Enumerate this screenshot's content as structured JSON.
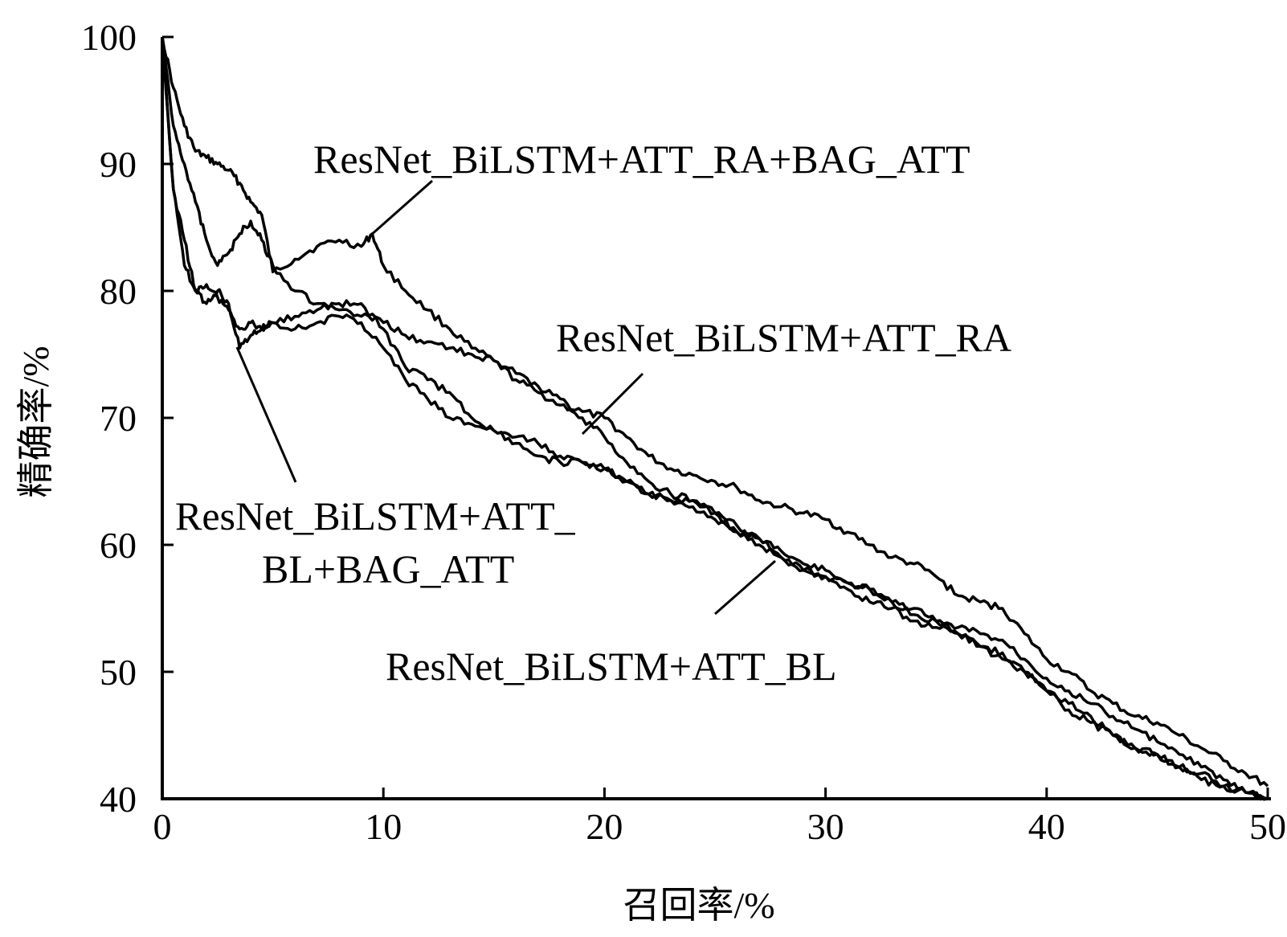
{
  "chart_data": {
    "type": "line",
    "xlabel": "召回率/%",
    "ylabel": "精确率/%",
    "xlim": [
      0,
      50
    ],
    "ylim": [
      40,
      100
    ],
    "xticks": [
      "0",
      "10",
      "20",
      "30",
      "40",
      "50"
    ],
    "yticks": [
      "40",
      "50",
      "60",
      "70",
      "80",
      "90",
      "100"
    ],
    "grid": false,
    "legend": "none",
    "line_color": "#000000",
    "series": [
      {
        "name": "ResNet_BiLSTM+ATT_RA+BAG_ATT",
        "x": [
          0,
          0.5,
          1,
          1.5,
          2,
          2.5,
          3,
          3.5,
          4,
          4.5,
          5,
          6,
          7,
          8,
          9,
          9.5,
          10,
          11,
          12,
          13,
          14,
          15,
          16,
          17,
          18,
          19,
          20,
          21,
          22,
          23,
          24,
          25,
          26,
          27,
          28,
          29,
          30,
          31,
          32,
          33,
          34,
          35,
          36,
          37,
          38,
          39,
          40,
          41,
          42,
          43,
          44,
          45,
          46,
          47,
          48,
          49,
          50
        ],
        "y": [
          100,
          96,
          93,
          91,
          90.5,
          90,
          89.5,
          88.5,
          87,
          86,
          81.5,
          82.5,
          83.5,
          84,
          83.5,
          84.5,
          82,
          80,
          78.5,
          77,
          75.5,
          74.5,
          73,
          72,
          71,
          70.5,
          70,
          68.5,
          67,
          66,
          65.5,
          65,
          64.5,
          63.5,
          63,
          62.5,
          62,
          61,
          60,
          59,
          58.5,
          57.5,
          56,
          55.5,
          55,
          53,
          51,
          50,
          48.5,
          47.5,
          46.5,
          46,
          45,
          44,
          43,
          42,
          41
        ]
      },
      {
        "name": "ResNet_BiLSTM+ATT_RA",
        "x": [
          0,
          0.5,
          1,
          1.5,
          2,
          2.5,
          3,
          3.5,
          4,
          4.5,
          5,
          6,
          7,
          8,
          9,
          10,
          11,
          12,
          13,
          14,
          15,
          16,
          17,
          18,
          19,
          20,
          21,
          22,
          23,
          24,
          25,
          26,
          27,
          28,
          29,
          30,
          31,
          32,
          33,
          34,
          35,
          36,
          37,
          38,
          39,
          40,
          41,
          42,
          43,
          44,
          45,
          46,
          47,
          48,
          49,
          50
        ],
        "y": [
          100,
          93,
          90,
          87,
          84,
          82,
          83,
          84.5,
          85.5,
          84,
          82,
          80,
          79,
          78.5,
          78,
          77.5,
          76.5,
          76,
          75.5,
          75,
          74.5,
          73.5,
          72.5,
          71.5,
          70,
          68.5,
          66.5,
          65,
          64,
          63.5,
          62.5,
          61.5,
          60.5,
          59.5,
          58.5,
          58,
          57,
          56.5,
          55.5,
          55,
          54,
          53.5,
          53,
          52.5,
          51,
          49.5,
          48.5,
          47.5,
          46.5,
          45.5,
          44.5,
          43.5,
          42.5,
          41.5,
          40.5,
          40
        ]
      },
      {
        "name": "ResNet_BiLSTM+ATT_BL+BAG_ATT",
        "x": [
          0,
          0.5,
          1,
          1.5,
          2,
          2.5,
          3,
          3.5,
          4,
          4.5,
          5,
          6,
          7,
          8,
          9,
          10,
          11,
          12,
          13,
          14,
          15,
          16,
          17,
          18,
          19,
          20,
          21,
          22,
          23,
          24,
          25,
          26,
          27,
          28,
          29,
          30,
          31,
          32,
          33,
          34,
          35,
          36,
          37,
          38,
          39,
          40,
          41,
          42,
          43,
          44,
          45,
          46,
          47,
          48,
          49,
          50
        ],
        "y": [
          100,
          88,
          84,
          80,
          79,
          80,
          79,
          75.5,
          76.5,
          77,
          77.5,
          78,
          78.5,
          79,
          79,
          77,
          74,
          73,
          72,
          70,
          69,
          68,
          67,
          66.5,
          66.5,
          66,
          65,
          64,
          63.5,
          63,
          62,
          61,
          60.5,
          59,
          58,
          57.5,
          56.5,
          55.5,
          55,
          54,
          53.5,
          53,
          52,
          51.5,
          50,
          48.5,
          47,
          46,
          45,
          44,
          43.5,
          42.5,
          42,
          41,
          40.5,
          40
        ]
      },
      {
        "name": "ResNet_BiLSTM+ATT_BL",
        "x": [
          0,
          0.5,
          1,
          1.5,
          2,
          2.5,
          3,
          3.5,
          4,
          4.5,
          5,
          6,
          7,
          8,
          9,
          10,
          11,
          12,
          13,
          14,
          15,
          16,
          17,
          18,
          19,
          20,
          21,
          22,
          23,
          24,
          25,
          26,
          27,
          28,
          29,
          30,
          31,
          32,
          33,
          34,
          35,
          36,
          37,
          38,
          39,
          40,
          41,
          42,
          43,
          44,
          45,
          46,
          47,
          48,
          49,
          50
        ],
        "y": [
          100,
          88,
          82,
          80,
          80.5,
          79.5,
          78.5,
          77,
          77.5,
          77,
          77.5,
          77,
          77.5,
          78,
          77.5,
          75.5,
          73,
          71.5,
          70,
          69.5,
          69,
          68.5,
          68,
          67,
          66.5,
          66,
          65,
          64,
          63.5,
          63.5,
          62.5,
          61,
          60,
          59,
          58,
          57.5,
          57,
          56.5,
          55.5,
          54.5,
          54,
          53,
          52,
          51,
          50,
          48.5,
          47.5,
          46.5,
          45,
          44,
          43.5,
          42.5,
          41.5,
          41,
          40.5,
          40
        ]
      }
    ],
    "annotations": [
      {
        "text": "ResNet_BiLSTM+ATT_RA+BAG_ATT",
        "series": 0
      },
      {
        "text": "ResNet_BiLSTM+ATT_RA",
        "series": 1
      },
      {
        "text": "ResNet_BiLSTM+ATT_",
        "text2": "BL+BAG_ATT",
        "series": 2
      },
      {
        "text": "ResNet_BiLSTM+ATT_BL",
        "series": 3
      }
    ]
  }
}
